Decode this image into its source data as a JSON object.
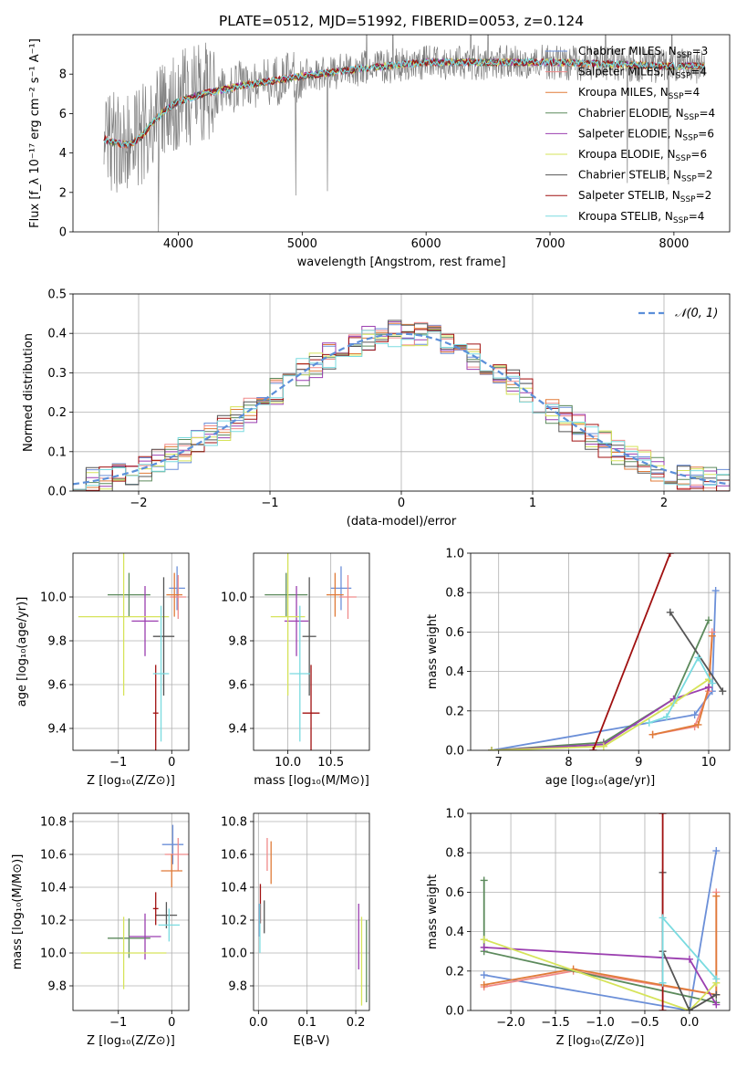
{
  "figure": {
    "title": "PLATE=0512, MJD=51992, FIBERID=0053, z=0.124"
  },
  "models": [
    {
      "name": "Chabrier MILES",
      "nssp": 3,
      "color": "#6b8fd8"
    },
    {
      "name": "Salpeter MILES",
      "nssp": 4,
      "color": "#f08a8a"
    },
    {
      "name": "Kroupa MILES",
      "nssp": 4,
      "color": "#e07b39"
    },
    {
      "name": "Chabrier ELODIE",
      "nssp": 4,
      "color": "#5c8a5c"
    },
    {
      "name": "Salpeter ELODIE",
      "nssp": 6,
      "color": "#9b3fb0"
    },
    {
      "name": "Kroupa ELODIE",
      "nssp": 6,
      "color": "#d6e35a"
    },
    {
      "name": "Chabrier STELIB",
      "nssp": 2,
      "color": "#555555"
    },
    {
      "name": "Salpeter STELIB",
      "nssp": 2,
      "color": "#a01010"
    },
    {
      "name": "Kroupa STELIB",
      "nssp": 4,
      "color": "#7adbe0"
    }
  ],
  "chart_data": [
    {
      "id": "spectrum",
      "type": "line",
      "xlabel": "wavelength [Angstrom, rest frame]",
      "ylabel": "Flux [f_λ 10⁻¹⁷ erg cm⁻² s⁻¹ A⁻¹]",
      "xlim": [
        3150,
        8450
      ],
      "ylim": [
        0,
        10
      ],
      "xticks": [
        4000,
        5000,
        6000,
        7000,
        8000
      ],
      "yticks": [
        0,
        2,
        4,
        6,
        8
      ],
      "data_color": "#808080",
      "continuum_x": [
        3400,
        3500,
        3600,
        3700,
        3800,
        3900,
        4000,
        4200,
        4500,
        5000,
        5500,
        6000,
        6500,
        7000,
        7500,
        8000,
        8250
      ],
      "continuum_y": [
        4.7,
        4.5,
        4.4,
        4.8,
        5.6,
        6.2,
        6.6,
        7.0,
        7.4,
        7.9,
        8.3,
        8.6,
        8.6,
        8.6,
        8.5,
        8.4,
        8.4
      ]
    },
    {
      "id": "residuals",
      "type": "bar",
      "xlabel": "(data-model)/error",
      "ylabel": "Normed distribution",
      "xlim": [
        -2.5,
        2.5
      ],
      "ylim": [
        0,
        0.5
      ],
      "xticks": [
        -2,
        -1,
        0,
        1,
        2
      ],
      "yticks": [
        0.0,
        0.1,
        0.2,
        0.3,
        0.4,
        0.5
      ],
      "legend": "𝒩(0, 1)",
      "gaussian_color": "#5b8fd9",
      "bin_width": 0.1
    },
    {
      "id": "age-vs-Z",
      "type": "scatter",
      "xlabel": "Z [log₁₀(Z/Z⊙)]",
      "ylabel": "age  [log₁₀(age/yr)]",
      "xlim": [
        -1.85,
        0.32
      ],
      "ylim": [
        9.3,
        10.2
      ],
      "xticks": [
        -1,
        0
      ],
      "yticks": [
        9.4,
        9.6,
        9.8,
        10.0
      ],
      "points": [
        {
          "model": 0,
          "x": 0.1,
          "xerr": 0.15,
          "y": 10.04,
          "yerr": 0.1
        },
        {
          "model": 1,
          "x": 0.12,
          "xerr": 0.15,
          "y": 10.0,
          "yerr": 0.1
        },
        {
          "model": 2,
          "x": 0.05,
          "xerr": 0.15,
          "y": 10.01,
          "yerr": 0.1
        },
        {
          "model": 3,
          "x": -0.8,
          "xerr": 0.4,
          "y": 10.01,
          "yerr": 0.1
        },
        {
          "model": 4,
          "x": -0.5,
          "xerr": 0.25,
          "y": 9.89,
          "yerr": 0.16
        },
        {
          "model": 5,
          "x": -0.9,
          "xerr": 0.85,
          "y": 9.91,
          "yerr": 0.36
        },
        {
          "model": 6,
          "x": -0.15,
          "xerr": 0.2,
          "y": 9.82,
          "yerr": 0.27
        },
        {
          "model": 7,
          "x": -0.3,
          "xerr": 0.05,
          "y": 9.47,
          "yerr": 0.22
        },
        {
          "model": 8,
          "x": -0.2,
          "xerr": 0.15,
          "y": 9.65,
          "yerr": 0.31
        }
      ]
    },
    {
      "id": "age-vs-mass",
      "type": "scatter",
      "xlabel": "mass [log₁₀(M/M⊙)]",
      "ylabel": "",
      "xlim": [
        9.6,
        10.95
      ],
      "ylim": [
        9.3,
        10.2
      ],
      "xticks": [
        10.0,
        10.5
      ],
      "yticks": [
        9.4,
        9.6,
        9.8,
        10.0
      ],
      "points": [
        {
          "model": 0,
          "x": 10.62,
          "xerr": 0.12,
          "y": 10.04,
          "yerr": 0.1
        },
        {
          "model": 1,
          "x": 10.7,
          "xerr": 0.1,
          "y": 10.0,
          "yerr": 0.1
        },
        {
          "model": 2,
          "x": 10.55,
          "xerr": 0.1,
          "y": 10.01,
          "yerr": 0.1
        },
        {
          "model": 3,
          "x": 9.98,
          "xerr": 0.25,
          "y": 10.01,
          "yerr": 0.1
        },
        {
          "model": 4,
          "x": 10.1,
          "xerr": 0.14,
          "y": 9.89,
          "yerr": 0.16
        },
        {
          "model": 5,
          "x": 10.0,
          "xerr": 0.2,
          "y": 9.91,
          "yerr": 0.36
        },
        {
          "model": 6,
          "x": 10.25,
          "xerr": 0.08,
          "y": 9.82,
          "yerr": 0.27
        },
        {
          "model": 7,
          "x": 10.27,
          "xerr": 0.1,
          "y": 9.47,
          "yerr": 0.22
        },
        {
          "model": 8,
          "x": 10.14,
          "xerr": 0.12,
          "y": 9.65,
          "yerr": 0.31
        }
      ]
    },
    {
      "id": "weight-vs-age",
      "type": "line",
      "xlabel": "age  [log₁₀(age/yr)]",
      "ylabel": "mass weight",
      "xlim": [
        6.6,
        10.3
      ],
      "ylim": [
        0,
        1
      ],
      "xticks": [
        7,
        8,
        9,
        10
      ],
      "yticks": [
        0.0,
        0.2,
        0.4,
        0.6,
        0.8,
        1.0
      ],
      "series": [
        {
          "model": 0,
          "x": [
            6.9,
            9.8,
            10.05,
            10.1
          ],
          "y": [
            0.0,
            0.18,
            0.3,
            0.81
          ]
        },
        {
          "model": 1,
          "x": [
            9.2,
            9.8,
            10.0,
            10.05
          ],
          "y": [
            0.08,
            0.12,
            0.3,
            0.6
          ]
        },
        {
          "model": 2,
          "x": [
            9.2,
            9.85,
            10.0,
            10.05
          ],
          "y": [
            0.08,
            0.13,
            0.32,
            0.58
          ]
        },
        {
          "model": 3,
          "x": [
            6.9,
            8.5,
            9.5,
            10.0
          ],
          "y": [
            0.0,
            0.04,
            0.26,
            0.66
          ]
        },
        {
          "model": 4,
          "x": [
            6.9,
            8.5,
            9.5,
            10.0
          ],
          "y": [
            0.0,
            0.03,
            0.26,
            0.32
          ]
        },
        {
          "model": 5,
          "x": [
            6.9,
            8.5,
            9.5,
            10.0
          ],
          "y": [
            0.0,
            0.02,
            0.24,
            0.36
          ]
        },
        {
          "model": 6,
          "x": [
            9.45,
            10.2
          ],
          "y": [
            0.7,
            0.3
          ]
        },
        {
          "model": 7,
          "x": [
            8.35,
            9.45
          ],
          "y": [
            0.0,
            1.0
          ]
        },
        {
          "model": 8,
          "x": [
            9.15,
            9.4,
            9.85,
            10.05
          ],
          "y": [
            0.14,
            0.17,
            0.47,
            0.34
          ]
        }
      ]
    },
    {
      "id": "mass-vs-Z",
      "type": "scatter",
      "xlabel": "Z [log₁₀(Z/Z⊙)]",
      "ylabel": "mass [log₁₀(M/M⊙)]",
      "xlim": [
        -1.85,
        0.32
      ],
      "ylim": [
        9.65,
        10.85
      ],
      "xticks": [
        -1,
        0
      ],
      "yticks": [
        9.8,
        10.0,
        10.2,
        10.4,
        10.6,
        10.8
      ],
      "points": [
        {
          "model": 0,
          "x": 0.02,
          "xerr": 0.2,
          "y": 10.66,
          "yerr": 0.12
        },
        {
          "model": 1,
          "x": 0.12,
          "xerr": 0.25,
          "y": 10.6,
          "yerr": 0.1
        },
        {
          "model": 2,
          "x": 0.0,
          "xerr": 0.2,
          "y": 10.5,
          "yerr": 0.1
        },
        {
          "model": 3,
          "x": -0.8,
          "xerr": 0.4,
          "y": 10.09,
          "yerr": 0.12
        },
        {
          "model": 4,
          "x": -0.5,
          "xerr": 0.3,
          "y": 10.1,
          "yerr": 0.14
        },
        {
          "model": 5,
          "x": -0.9,
          "xerr": 0.8,
          "y": 10.0,
          "yerr": 0.22
        },
        {
          "model": 6,
          "x": -0.1,
          "xerr": 0.2,
          "y": 10.23,
          "yerr": 0.08
        },
        {
          "model": 7,
          "x": -0.3,
          "xerr": 0.05,
          "y": 10.27,
          "yerr": 0.1
        },
        {
          "model": 8,
          "x": -0.05,
          "xerr": 0.2,
          "y": 10.17,
          "yerr": 0.1
        }
      ]
    },
    {
      "id": "mass-vs-EBV",
      "type": "scatter",
      "xlabel": "E(B-V)",
      "ylabel": "",
      "xlim": [
        -0.01,
        0.228
      ],
      "ylim": [
        9.65,
        10.85
      ],
      "xticks": [
        0.0,
        0.1,
        0.2
      ],
      "yticks": [
        9.8,
        10.0,
        10.2,
        10.4,
        10.6,
        10.8
      ],
      "points": [
        {
          "model": 0,
          "x": 0.002,
          "xerr": 0,
          "y": 10.2,
          "yerr": 0.1
        },
        {
          "model": 1,
          "x": 0.018,
          "xerr": 0,
          "y": 10.6,
          "yerr": 0.1
        },
        {
          "model": 2,
          "x": 0.026,
          "xerr": 0,
          "y": 10.55,
          "yerr": 0.13
        },
        {
          "model": 3,
          "x": 0.222,
          "xerr": 0,
          "y": 9.95,
          "yerr": 0.25
        },
        {
          "model": 4,
          "x": 0.206,
          "xerr": 0,
          "y": 10.1,
          "yerr": 0.2
        },
        {
          "model": 5,
          "x": 0.212,
          "xerr": 0,
          "y": 9.95,
          "yerr": 0.27
        },
        {
          "model": 6,
          "x": 0.012,
          "xerr": 0,
          "y": 10.22,
          "yerr": 0.1
        },
        {
          "model": 7,
          "x": 0.004,
          "xerr": 0,
          "y": 10.3,
          "yerr": 0.12
        },
        {
          "model": 8,
          "x": 0.003,
          "xerr": 0,
          "y": 10.15,
          "yerr": 0.15
        }
      ]
    },
    {
      "id": "weight-vs-Z",
      "type": "line",
      "xlabel": "Z [log₁₀(Z/Z⊙)]",
      "ylabel": "mass weight",
      "xlim": [
        -2.45,
        0.45
      ],
      "ylim": [
        0,
        1
      ],
      "xticks": [
        -2.0,
        -1.5,
        -1.0,
        -0.5,
        0.0
      ],
      "yticks": [
        0.0,
        0.2,
        0.4,
        0.6,
        0.8,
        1.0
      ],
      "series": [
        {
          "model": 0,
          "x": [
            -2.3,
            0.0,
            0.3
          ],
          "y": [
            0.18,
            0.0,
            0.81
          ]
        },
        {
          "model": 1,
          "x": [
            -2.3,
            -1.3,
            0.3,
            0.3
          ],
          "y": [
            0.12,
            0.2,
            0.08,
            0.6
          ]
        },
        {
          "model": 2,
          "x": [
            -2.3,
            -1.3,
            0.3,
            0.3
          ],
          "y": [
            0.13,
            0.21,
            0.08,
            0.58
          ]
        },
        {
          "model": 3,
          "x": [
            -2.3,
            -2.3,
            0.3
          ],
          "y": [
            0.66,
            0.3,
            0.04
          ]
        },
        {
          "model": 4,
          "x": [
            -2.3,
            0.0,
            0.3
          ],
          "y": [
            0.32,
            0.26,
            0.03
          ]
        },
        {
          "model": 5,
          "x": [
            -2.3,
            0.0,
            0.3
          ],
          "y": [
            0.36,
            0.0,
            0.14
          ]
        },
        {
          "model": 6,
          "x": [
            -0.3,
            -0.3,
            0.0,
            0.3
          ],
          "y": [
            0.7,
            0.3,
            0.0,
            0.08
          ]
        },
        {
          "model": 7,
          "x": [
            -0.3,
            -0.3
          ],
          "y": [
            0.0,
            1.0
          ]
        },
        {
          "model": 8,
          "x": [
            -0.3,
            -0.3,
            0.3
          ],
          "y": [
            0.14,
            0.47,
            0.16
          ]
        }
      ]
    }
  ]
}
